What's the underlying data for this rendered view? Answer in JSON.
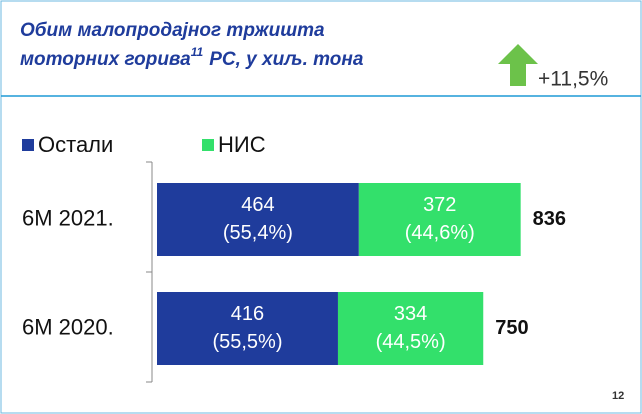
{
  "chart_data": {
    "type": "bar",
    "orientation": "horizontal",
    "stacked": true,
    "title": "Обим малопродајног тржишта",
    "title_line2": "моторних горива",
    "title_footnote": "11",
    "title_suffix": "РС, у хиљ. тона",
    "growth_label": "+11,5%",
    "page_number": "12",
    "categories": [
      "6М 2021.",
      "6М 2020."
    ],
    "series": [
      {
        "name": "Остали",
        "color": "#1f3c9c",
        "values": [
          464,
          416
        ],
        "shares": [
          55.4,
          55.5
        ],
        "share_labels": [
          "(55,4%)",
          "(55,5%)"
        ]
      },
      {
        "name": "НИС",
        "color": "#33e06b",
        "values": [
          372,
          334
        ],
        "shares": [
          44.6,
          44.5
        ],
        "share_labels": [
          "(44,6%)",
          "(44,5%)"
        ]
      }
    ],
    "totals": [
      836,
      750
    ]
  }
}
